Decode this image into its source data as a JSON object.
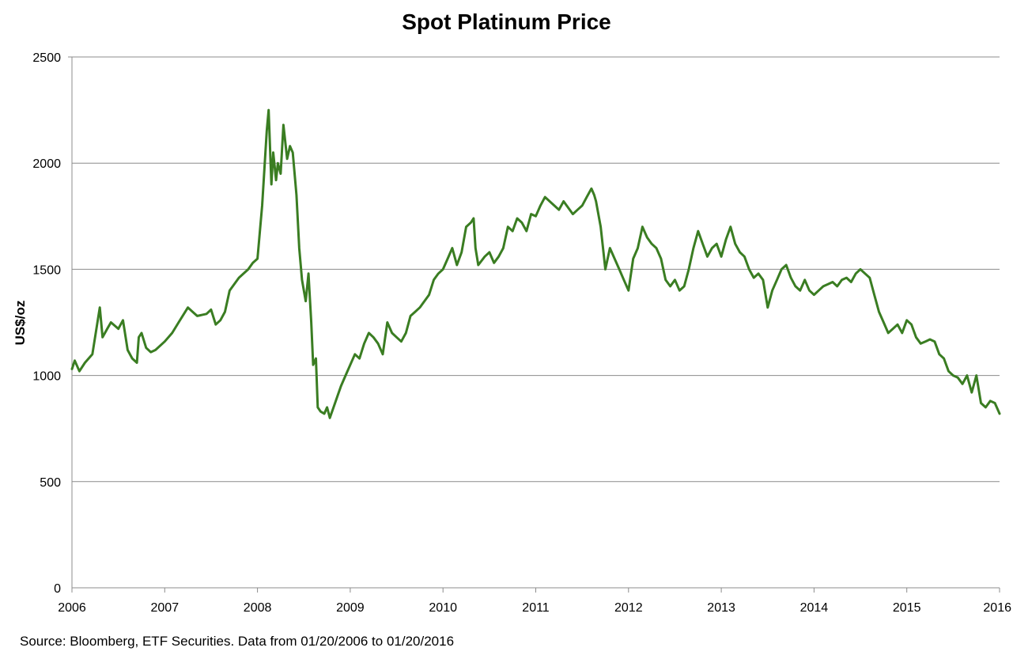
{
  "chart_data": {
    "type": "line",
    "title": "Spot Platinum Price",
    "xlabel": "",
    "ylabel": "US$/oz",
    "ylim": [
      0,
      2500
    ],
    "yticks": [
      0,
      500,
      1000,
      1500,
      2000,
      2500
    ],
    "xlim": [
      2006,
      2016
    ],
    "xticks": [
      "2006",
      "2007",
      "2008",
      "2009",
      "2010",
      "2011",
      "2012",
      "2013",
      "2014",
      "2015",
      "2016"
    ],
    "grid": "horizontal",
    "legend": "none",
    "line_color": "#3a7d22",
    "series": [
      {
        "x": [
          2006.0,
          2006.03,
          2006.08,
          2006.14,
          2006.22,
          2006.3,
          2006.33,
          2006.38,
          2006.42,
          2006.5,
          2006.55,
          2006.6,
          2006.65,
          2006.7,
          2006.72,
          2006.75,
          2006.8,
          2006.85,
          2006.9,
          2007.0,
          2007.08,
          2007.15,
          2007.25,
          2007.3,
          2007.35,
          2007.45,
          2007.5,
          2007.55,
          2007.6,
          2007.65,
          2007.7,
          2007.8,
          2007.9,
          2007.95,
          2008.0,
          2008.05,
          2008.1,
          2008.12,
          2008.15,
          2008.17,
          2008.2,
          2008.22,
          2008.25,
          2008.28,
          2008.32,
          2008.35,
          2008.38,
          2008.42,
          2008.45,
          2008.48,
          2008.52,
          2008.55,
          2008.58,
          2008.6,
          2008.63,
          2008.65,
          2008.68,
          2008.72,
          2008.75,
          2008.78,
          2008.82,
          2008.86,
          2008.9,
          2008.95,
          2009.0,
          2009.05,
          2009.1,
          2009.15,
          2009.2,
          2009.25,
          2009.3,
          2009.35,
          2009.4,
          2009.45,
          2009.5,
          2009.55,
          2009.6,
          2009.65,
          2009.7,
          2009.75,
          2009.8,
          2009.85,
          2009.9,
          2009.95,
          2010.0,
          2010.05,
          2010.1,
          2010.15,
          2010.2,
          2010.25,
          2010.3,
          2010.33,
          2010.35,
          2010.38,
          2010.45,
          2010.5,
          2010.55,
          2010.6,
          2010.65,
          2010.7,
          2010.75,
          2010.8,
          2010.85,
          2010.9,
          2010.95,
          2011.0,
          2011.05,
          2011.1,
          2011.15,
          2011.2,
          2011.25,
          2011.3,
          2011.35,
          2011.4,
          2011.45,
          2011.5,
          2011.55,
          2011.6,
          2011.63,
          2011.65,
          2011.7,
          2011.75,
          2011.8,
          2011.85,
          2011.9,
          2011.95,
          2012.0,
          2012.05,
          2012.1,
          2012.15,
          2012.2,
          2012.25,
          2012.3,
          2012.35,
          2012.4,
          2012.45,
          2012.5,
          2012.55,
          2012.6,
          2012.65,
          2012.7,
          2012.75,
          2012.8,
          2012.85,
          2012.9,
          2012.95,
          2013.0,
          2013.05,
          2013.1,
          2013.15,
          2013.2,
          2013.25,
          2013.3,
          2013.35,
          2013.4,
          2013.45,
          2013.5,
          2013.55,
          2013.6,
          2013.65,
          2013.7,
          2013.75,
          2013.8,
          2013.85,
          2013.9,
          2013.95,
          2014.0,
          2014.05,
          2014.1,
          2014.15,
          2014.2,
          2014.25,
          2014.3,
          2014.35,
          2014.4,
          2014.45,
          2014.5,
          2014.55,
          2014.6,
          2014.65,
          2014.7,
          2014.75,
          2014.8,
          2014.85,
          2014.9,
          2014.95,
          2015.0,
          2015.05,
          2015.1,
          2015.15,
          2015.2,
          2015.25,
          2015.3,
          2015.35,
          2015.4,
          2015.45,
          2015.5,
          2015.55,
          2015.6,
          2015.65,
          2015.7,
          2015.75,
          2015.8,
          2015.85,
          2015.9,
          2015.95,
          2016.0
        ],
        "values": [
          1030,
          1070,
          1020,
          1060,
          1100,
          1320,
          1180,
          1220,
          1250,
          1220,
          1260,
          1120,
          1080,
          1060,
          1180,
          1200,
          1130,
          1110,
          1120,
          1160,
          1200,
          1250,
          1320,
          1300,
          1280,
          1290,
          1310,
          1240,
          1260,
          1300,
          1400,
          1460,
          1500,
          1530,
          1550,
          1800,
          2150,
          2250,
          1900,
          2050,
          1920,
          2000,
          1950,
          2180,
          2020,
          2080,
          2050,
          1850,
          1600,
          1450,
          1350,
          1480,
          1250,
          1050,
          1080,
          850,
          830,
          820,
          850,
          800,
          850,
          900,
          950,
          1000,
          1050,
          1100,
          1080,
          1150,
          1200,
          1180,
          1150,
          1100,
          1250,
          1200,
          1180,
          1160,
          1200,
          1280,
          1300,
          1320,
          1350,
          1380,
          1450,
          1480,
          1500,
          1550,
          1600,
          1520,
          1580,
          1700,
          1720,
          1740,
          1600,
          1520,
          1560,
          1580,
          1530,
          1560,
          1600,
          1700,
          1680,
          1740,
          1720,
          1680,
          1760,
          1750,
          1800,
          1840,
          1820,
          1800,
          1780,
          1820,
          1790,
          1760,
          1780,
          1800,
          1840,
          1880,
          1850,
          1820,
          1700,
          1500,
          1600,
          1550,
          1500,
          1450,
          1400,
          1550,
          1600,
          1700,
          1650,
          1620,
          1600,
          1550,
          1450,
          1420,
          1450,
          1400,
          1420,
          1500,
          1600,
          1680,
          1620,
          1560,
          1600,
          1620,
          1560,
          1640,
          1700,
          1620,
          1580,
          1560,
          1500,
          1460,
          1480,
          1450,
          1320,
          1400,
          1450,
          1500,
          1520,
          1460,
          1420,
          1400,
          1450,
          1400,
          1380,
          1400,
          1420,
          1430,
          1440,
          1420,
          1450,
          1460,
          1440,
          1480,
          1500,
          1480,
          1460,
          1380,
          1300,
          1250,
          1200,
          1220,
          1240,
          1200,
          1260,
          1240,
          1180,
          1150,
          1160,
          1170,
          1160,
          1100,
          1080,
          1020,
          1000,
          990,
          960,
          1000,
          920,
          1000,
          870,
          850,
          880,
          870,
          820
        ]
      }
    ],
    "source": "Source: Bloomberg, ETF Securities. Data from 01/20/2006 to 01/20/2016"
  }
}
